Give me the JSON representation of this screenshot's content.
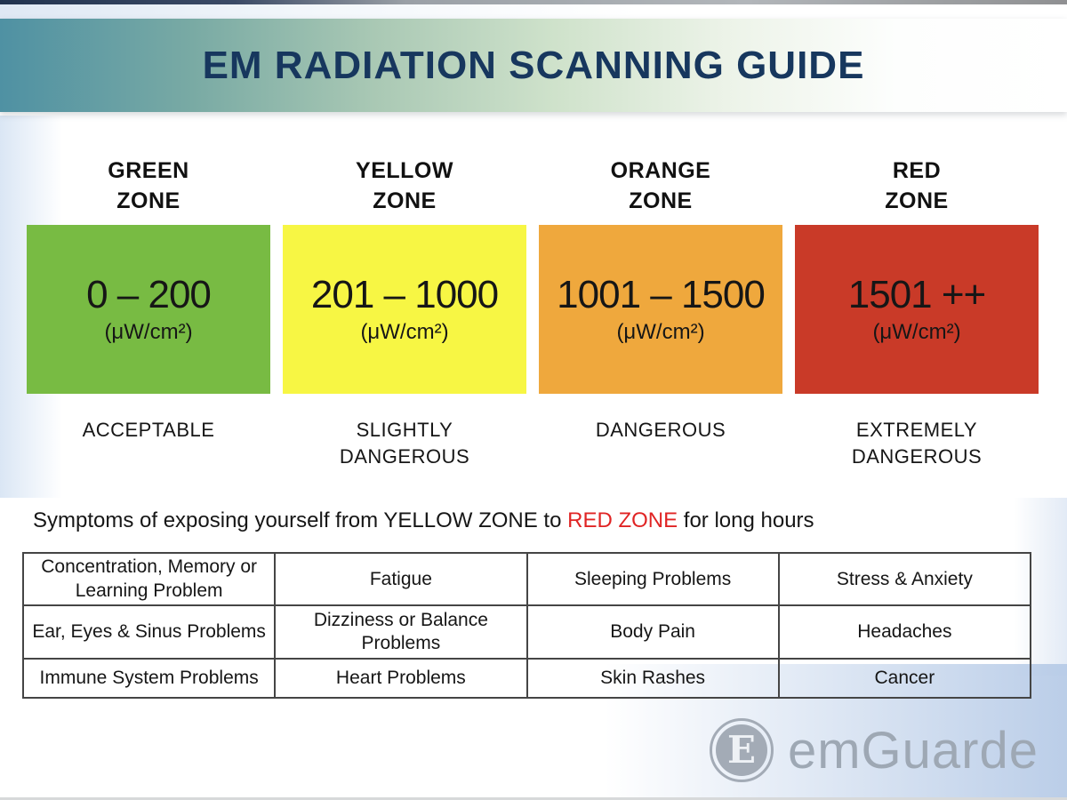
{
  "header": {
    "title": "EM RADIATION SCANNING GUIDE",
    "title_color": "#17375e"
  },
  "zones": [
    {
      "label": "GREEN\nZONE",
      "range": "0 – 200",
      "unit": "(μW/cm²)",
      "severity": "ACCEPTABLE",
      "color": "#78bb43"
    },
    {
      "label": "YELLOW\nZONE",
      "range": "201 – 1000",
      "unit": "(μW/cm²)",
      "severity": "SLIGHTLY\nDANGEROUS",
      "color": "#f7f644"
    },
    {
      "label": "ORANGE\nZONE",
      "range": "1001 – 1500",
      "unit": "(μW/cm²)",
      "severity": "DANGEROUS",
      "color": "#efa83d"
    },
    {
      "label": "RED\nZONE",
      "range": "1501 ++",
      "unit": "(μW/cm²)",
      "severity": "EXTREMELY\nDANGEROUS",
      "color": "#c93a28"
    }
  ],
  "symptoms": {
    "prefix": "Symptoms of exposing yourself from YELLOW ZONE to ",
    "highlight": "RED ZONE",
    "suffix": " for long hours",
    "highlight_color": "#e02424"
  },
  "table": {
    "rows": [
      [
        "Concentration, Memory or Learning Problem",
        "Fatigue",
        "Sleeping Problems",
        "Stress & Anxiety"
      ],
      [
        "Ear, Eyes & Sinus Problems",
        "Dizziness or Balance Problems",
        "Body Pain",
        "Headaches"
      ],
      [
        "Immune System Problems",
        "Heart Problems",
        "Skin Rashes",
        "Cancer"
      ]
    ]
  },
  "logo": {
    "brand": "emGuarde",
    "monogram": "E"
  }
}
